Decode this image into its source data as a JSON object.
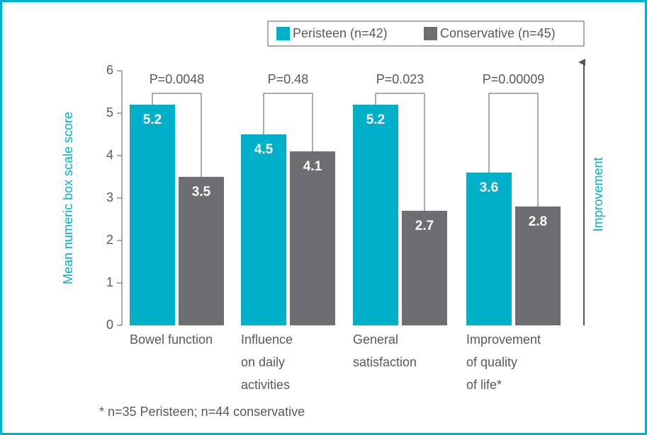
{
  "chart_data": {
    "type": "bar",
    "ylabel": "Mean numeric box scale score",
    "categories": [
      [
        "Bowel function"
      ],
      [
        "Influence",
        "on daily",
        "activities"
      ],
      [
        "General",
        "satisfaction"
      ],
      [
        "Improvement",
        "of quality",
        "of life*"
      ]
    ],
    "series": [
      {
        "name": "Peristeen (n=42)",
        "color": "#00afc8",
        "values": [
          5.2,
          4.5,
          5.2,
          3.6
        ]
      },
      {
        "name": "Conservative (n=45)",
        "color": "#6d6e71",
        "values": [
          3.5,
          4.1,
          2.7,
          2.8
        ]
      }
    ],
    "ylim": [
      0,
      6
    ],
    "yticks": [
      0,
      1,
      2,
      3,
      4,
      5,
      6
    ],
    "p_values": [
      "P=0.0048",
      "P=0.48",
      "P=0.023",
      "P=0.00009"
    ],
    "arrow_label": "Improvement",
    "footnote": "* n=35 Peristeen; n=44 conservative"
  }
}
